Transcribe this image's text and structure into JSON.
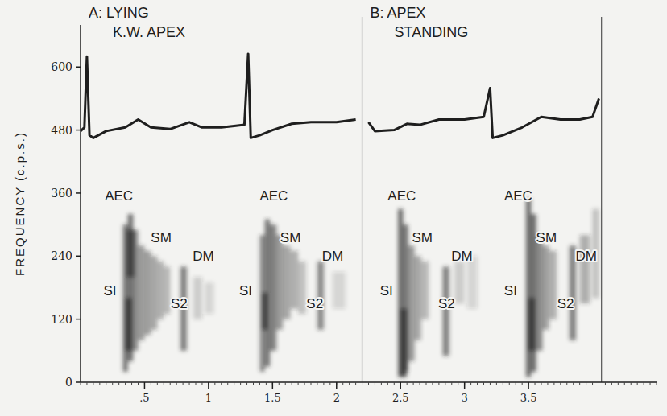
{
  "chart_data": {
    "type": "spectrogram",
    "y_label": "FREQUENCY (c.p.s.)",
    "xlim": [
      0,
      4.5
    ],
    "ylim": [
      0,
      680
    ],
    "xticks": [
      {
        "value": 0.5,
        "label": ".5"
      },
      1,
      1.5,
      2,
      2.5,
      3,
      3.5
    ],
    "yticks": [
      0,
      120,
      240,
      360,
      480,
      600
    ],
    "panels": [
      {
        "title": "A: LYING",
        "subtitle": "K.W. APEX",
        "start": 0,
        "end": 2.2
      },
      {
        "title": "B: APEX",
        "subtitle": "STANDING",
        "start": 2.2,
        "end": 4.07
      }
    ],
    "dividers": [
      2.2,
      4.07
    ],
    "ecg": {
      "x": [
        0.0,
        0.03,
        0.05,
        0.07,
        0.1,
        0.2,
        0.35,
        0.45,
        0.55,
        0.7,
        0.85,
        0.95,
        1.1,
        1.2,
        1.28,
        1.31,
        1.33,
        1.4,
        1.5,
        1.65,
        1.8,
        2.0,
        2.15,
        2.2,
        2.25,
        2.3,
        2.45,
        2.55,
        2.65,
        2.8,
        3.0,
        3.15,
        3.2,
        3.22,
        3.3,
        3.45,
        3.6,
        3.75,
        3.9,
        4.0,
        4.05
      ],
      "values": [
        478,
        485,
        620,
        470,
        465,
        478,
        485,
        500,
        485,
        482,
        495,
        485,
        485,
        488,
        490,
        625,
        465,
        470,
        480,
        492,
        495,
        495,
        500,
        null,
        495,
        478,
        480,
        492,
        490,
        500,
        500,
        505,
        560,
        465,
        470,
        485,
        505,
        500,
        500,
        505,
        540
      ]
    },
    "cells": [
      [
        0.33,
        0.37,
        20,
        300,
        0.8
      ],
      [
        0.37,
        0.41,
        40,
        320,
        0.9
      ],
      [
        0.41,
        0.45,
        60,
        290,
        0.7
      ],
      [
        0.45,
        0.5,
        80,
        260,
        0.6
      ],
      [
        0.5,
        0.55,
        90,
        250,
        0.55
      ],
      [
        0.55,
        0.6,
        100,
        240,
        0.5
      ],
      [
        0.6,
        0.65,
        120,
        230,
        0.45
      ],
      [
        0.65,
        0.7,
        130,
        220,
        0.4
      ],
      [
        0.35,
        0.4,
        60,
        160,
        1.0
      ],
      [
        0.36,
        0.42,
        200,
        290,
        0.9
      ],
      [
        0.78,
        0.83,
        60,
        220,
        0.75
      ],
      [
        0.88,
        0.95,
        120,
        200,
        0.25
      ],
      [
        0.97,
        1.04,
        130,
        190,
        0.2
      ],
      [
        1.4,
        1.44,
        20,
        280,
        0.7
      ],
      [
        1.44,
        1.48,
        30,
        310,
        0.85
      ],
      [
        1.48,
        1.53,
        60,
        300,
        0.75
      ],
      [
        1.53,
        1.58,
        100,
        280,
        0.6
      ],
      [
        1.58,
        1.64,
        120,
        260,
        0.5
      ],
      [
        1.64,
        1.7,
        140,
        250,
        0.45
      ],
      [
        1.7,
        1.76,
        130,
        230,
        0.35
      ],
      [
        1.42,
        1.46,
        100,
        170,
        1.0
      ],
      [
        1.85,
        1.9,
        100,
        230,
        0.7
      ],
      [
        1.97,
        2.07,
        140,
        210,
        0.2
      ],
      [
        2.48,
        2.52,
        10,
        330,
        0.9
      ],
      [
        2.52,
        2.56,
        20,
        300,
        0.85
      ],
      [
        2.56,
        2.61,
        40,
        260,
        0.6
      ],
      [
        2.61,
        2.66,
        80,
        240,
        0.5
      ],
      [
        2.66,
        2.72,
        120,
        230,
        0.4
      ],
      [
        2.5,
        2.55,
        10,
        140,
        1.0
      ],
      [
        2.83,
        2.88,
        50,
        220,
        0.75
      ],
      [
        2.92,
        3.0,
        150,
        230,
        0.25
      ],
      [
        3.02,
        3.1,
        140,
        240,
        0.2
      ],
      [
        3.48,
        3.52,
        10,
        350,
        0.9
      ],
      [
        3.52,
        3.56,
        20,
        320,
        0.9
      ],
      [
        3.56,
        3.61,
        60,
        280,
        0.7
      ],
      [
        3.61,
        3.66,
        100,
        260,
        0.55
      ],
      [
        3.66,
        3.72,
        120,
        250,
        0.45
      ],
      [
        3.5,
        3.55,
        60,
        160,
        1.0
      ],
      [
        3.82,
        3.87,
        80,
        260,
        0.75
      ],
      [
        3.9,
        3.98,
        150,
        280,
        0.45
      ],
      [
        4.0,
        4.05,
        160,
        330,
        0.35
      ]
    ],
    "annotations": [
      {
        "text": "AEC",
        "x": 0.3,
        "y": 355
      },
      {
        "text": "SM",
        "x": 0.63,
        "y": 275
      },
      {
        "text": "DM",
        "x": 0.96,
        "y": 240
      },
      {
        "text": "SI",
        "x": 0.23,
        "y": 175
      },
      {
        "text": "S2",
        "x": 0.77,
        "y": 150
      },
      {
        "text": "AEC",
        "x": 1.51,
        "y": 355
      },
      {
        "text": "SM",
        "x": 1.64,
        "y": 275
      },
      {
        "text": "DM",
        "x": 1.97,
        "y": 240
      },
      {
        "text": "SI",
        "x": 1.29,
        "y": 175
      },
      {
        "text": "S2",
        "x": 1.83,
        "y": 150
      },
      {
        "text": "AEC",
        "x": 2.51,
        "y": 355
      },
      {
        "text": "SM",
        "x": 2.67,
        "y": 275
      },
      {
        "text": "DM",
        "x": 2.98,
        "y": 240
      },
      {
        "text": "SI",
        "x": 2.39,
        "y": 175
      },
      {
        "text": "S2",
        "x": 2.86,
        "y": 150
      },
      {
        "text": "AEC",
        "x": 3.42,
        "y": 355
      },
      {
        "text": "SM",
        "x": 3.64,
        "y": 275
      },
      {
        "text": "DM",
        "x": 3.95,
        "y": 240
      },
      {
        "text": "SI",
        "x": 3.36,
        "y": 175
      },
      {
        "text": "S2",
        "x": 3.79,
        "y": 150
      }
    ]
  }
}
